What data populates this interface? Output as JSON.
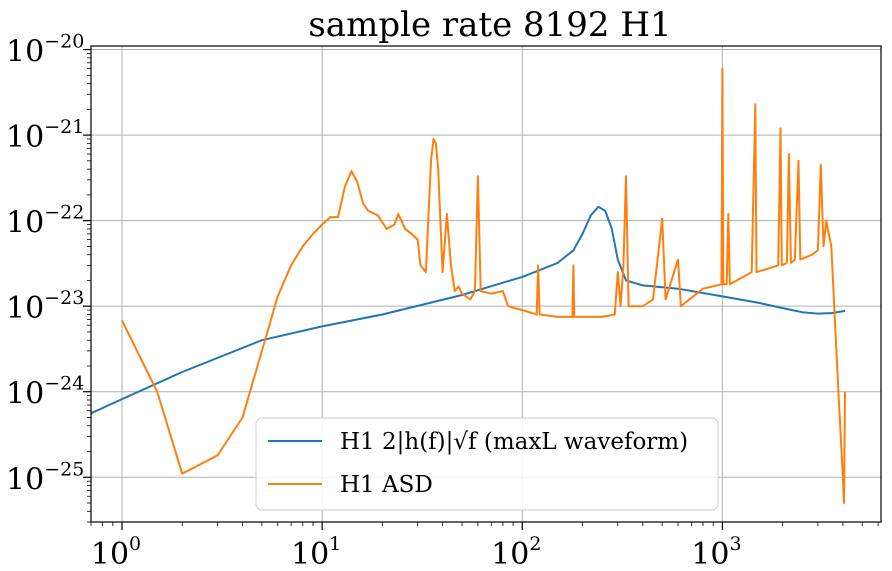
{
  "chart_data": {
    "type": "line",
    "title": "sample rate 8192 H1",
    "xlabel": "",
    "ylabel": "",
    "xscale": "log",
    "yscale": "log",
    "xlim": [
      0.7,
      6200
    ],
    "ylim": [
      3e-26,
      1.1e-20
    ],
    "grid": true,
    "legend_position": "lower-center",
    "x_ticks": [
      {
        "value": 1,
        "base": "10",
        "exp": "0"
      },
      {
        "value": 10,
        "base": "10",
        "exp": "1"
      },
      {
        "value": 100,
        "base": "10",
        "exp": "2"
      },
      {
        "value": 1000,
        "base": "10",
        "exp": "3"
      }
    ],
    "y_ticks": [
      {
        "value": 1e-25,
        "base": "10",
        "exp": "−25"
      },
      {
        "value": 1e-24,
        "base": "10",
        "exp": "−24"
      },
      {
        "value": 1e-23,
        "base": "10",
        "exp": "−23"
      },
      {
        "value": 1e-22,
        "base": "10",
        "exp": "−22"
      },
      {
        "value": 1e-21,
        "base": "10",
        "exp": "−21"
      },
      {
        "value": 1e-20,
        "base": "10",
        "exp": "−20"
      }
    ],
    "series": [
      {
        "name": "H1 2|h(f)|√f (maxL waveform)",
        "color": "#1f77b4",
        "points": [
          [
            0.7,
            5.6e-25
          ],
          [
            1,
            8.2e-25
          ],
          [
            2,
            1.7e-24
          ],
          [
            5,
            4e-24
          ],
          [
            10,
            5.8e-24
          ],
          [
            20,
            8e-24
          ],
          [
            50,
            1.35e-23
          ],
          [
            100,
            2.2e-23
          ],
          [
            150,
            3.2e-23
          ],
          [
            180,
            4.5e-23
          ],
          [
            200,
            7e-23
          ],
          [
            220,
            1.15e-22
          ],
          [
            240,
            1.45e-22
          ],
          [
            260,
            1.3e-22
          ],
          [
            280,
            8e-23
          ],
          [
            300,
            3.5e-23
          ],
          [
            330,
            2e-23
          ],
          [
            400,
            1.75e-23
          ],
          [
            600,
            1.6e-23
          ],
          [
            1000,
            1.3e-23
          ],
          [
            1500,
            1.1e-23
          ],
          [
            2000,
            9.5e-24
          ],
          [
            2500,
            8.5e-24
          ],
          [
            3000,
            8.2e-24
          ],
          [
            3500,
            8.3e-24
          ],
          [
            4100,
            8.8e-24
          ]
        ]
      },
      {
        "name": "H1 ASD",
        "color": "#ff7f0e",
        "points": [
          [
            1,
            6.8e-24
          ],
          [
            1.5,
            1e-24
          ],
          [
            2,
            1.1e-25
          ],
          [
            3,
            1.8e-25
          ],
          [
            4,
            5e-25
          ],
          [
            5,
            3e-24
          ],
          [
            6,
            1.3e-23
          ],
          [
            7,
            3e-23
          ],
          [
            8,
            5e-23
          ],
          [
            9,
            7e-23
          ],
          [
            10,
            9e-23
          ],
          [
            11,
            1.1e-22
          ],
          [
            12,
            1.1e-22
          ],
          [
            13,
            2.5e-22
          ],
          [
            14,
            3.8e-22
          ],
          [
            15,
            2.8e-22
          ],
          [
            16,
            1.6e-22
          ],
          [
            17,
            1.3e-22
          ],
          [
            19,
            1.15e-22
          ],
          [
            21,
            8e-23
          ],
          [
            23,
            9e-23
          ],
          [
            24,
            1.2e-22
          ],
          [
            26,
            8e-23
          ],
          [
            28,
            7e-23
          ],
          [
            30,
            6e-23
          ],
          [
            31,
            3e-23
          ],
          [
            33,
            2.5e-23
          ],
          [
            35,
            5e-22
          ],
          [
            36,
            9e-22
          ],
          [
            37,
            8e-22
          ],
          [
            38,
            4e-22
          ],
          [
            40,
            2.5e-23
          ],
          [
            42,
            1.2e-22
          ],
          [
            44,
            3e-23
          ],
          [
            46,
            1.5e-23
          ],
          [
            48,
            1.7e-23
          ],
          [
            50,
            1.4e-23
          ],
          [
            55,
            1.2e-23
          ],
          [
            58,
            1.5e-23
          ],
          [
            60,
            3.3e-22
          ],
          [
            62,
            1.5e-23
          ],
          [
            70,
            1.4e-23
          ],
          [
            80,
            1.5e-23
          ],
          [
            85,
            1e-23
          ],
          [
            100,
            9e-24
          ],
          [
            118,
            8e-24
          ],
          [
            120,
            3e-23
          ],
          [
            122,
            8e-24
          ],
          [
            150,
            7.5e-24
          ],
          [
            178,
            7.5e-24
          ],
          [
            180,
            3e-23
          ],
          [
            182,
            7.5e-24
          ],
          [
            250,
            7.5e-24
          ],
          [
            290,
            8e-24
          ],
          [
            300,
            2.5e-23
          ],
          [
            310,
            1e-23
          ],
          [
            320,
            3e-23
          ],
          [
            330,
            3.3e-22
          ],
          [
            340,
            1e-23
          ],
          [
            400,
            1e-23
          ],
          [
            450,
            1.2e-23
          ],
          [
            500,
            1.05e-22
          ],
          [
            520,
            1.2e-23
          ],
          [
            600,
            3.5e-23
          ],
          [
            620,
            1e-23
          ],
          [
            800,
            1.6e-23
          ],
          [
            990,
            1.8e-23
          ],
          [
            1000,
            6e-21
          ],
          [
            1010,
            1.8e-23
          ],
          [
            1050,
            1.8e-23
          ],
          [
            1070,
            1.2e-22
          ],
          [
            1090,
            1.8e-23
          ],
          [
            1400,
            2.5e-23
          ],
          [
            1460,
            2.3e-21
          ],
          [
            1480,
            2.5e-23
          ],
          [
            1900,
            3e-23
          ],
          [
            1950,
            1.2e-21
          ],
          [
            1980,
            3e-23
          ],
          [
            2100,
            3.2e-23
          ],
          [
            2150,
            6e-22
          ],
          [
            2200,
            3.2e-23
          ],
          [
            2300,
            3.5e-23
          ],
          [
            2400,
            5e-22
          ],
          [
            2450,
            3.5e-23
          ],
          [
            2800,
            4e-23
          ],
          [
            3000,
            4.5e-23
          ],
          [
            3100,
            4.5e-22
          ],
          [
            3200,
            5e-23
          ],
          [
            3300,
            1e-22
          ],
          [
            3500,
            5e-23
          ],
          [
            3800,
            1e-24
          ],
          [
            4000,
            1e-25
          ],
          [
            4050,
            5e-26
          ],
          [
            4096,
            1e-24
          ]
        ]
      }
    ]
  }
}
